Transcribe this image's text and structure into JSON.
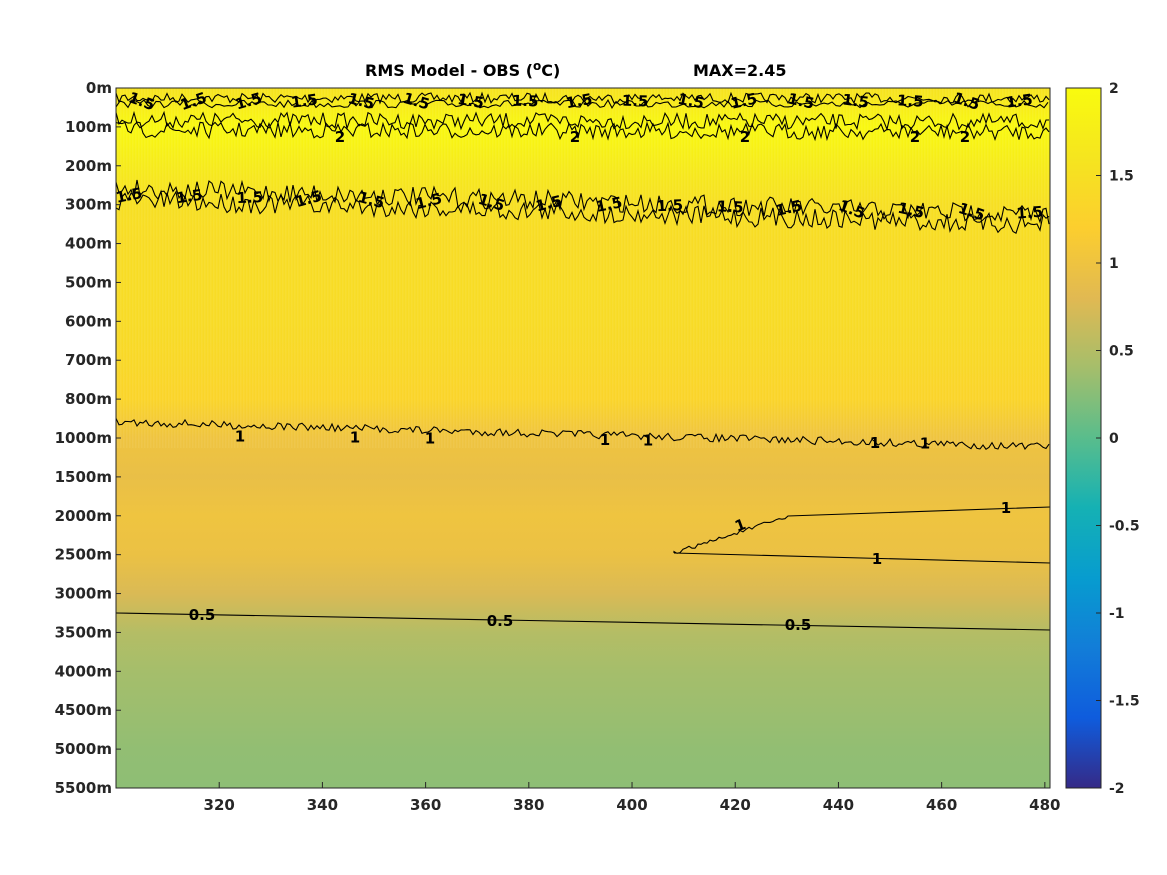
{
  "chart_data": {
    "type": "heatmap",
    "title": "RMS Model - OBS (",
    "title_unit": "o",
    "title_unit_suffix": "C)",
    "max_label": "MAX=2.45",
    "x_ticks": [
      "320",
      "340",
      "360",
      "380",
      "400",
      "420",
      "440",
      "460",
      "480"
    ],
    "x_tick_values": [
      320,
      340,
      360,
      380,
      400,
      420,
      440,
      460,
      480
    ],
    "xlim": [
      300,
      481
    ],
    "y_ticks": [
      "0m",
      "100m",
      "200m",
      "300m",
      "400m",
      "500m",
      "600m",
      "700m",
      "800m",
      "1000m",
      "1500m",
      "2000m",
      "2500m",
      "3000m",
      "3500m",
      "4000m",
      "4500m",
      "5000m",
      "5500m"
    ],
    "colorbar": {
      "min": -2,
      "max": 2,
      "ticks": [
        "2",
        "1.5",
        "1",
        "0.5",
        "0",
        "-0.5",
        "-1",
        "-1.5",
        "-2"
      ],
      "tick_values": [
        2,
        1.5,
        1,
        0.5,
        0,
        -0.5,
        -1,
        -1.5,
        -2
      ]
    },
    "depth_profile": [
      {
        "depth": "0m",
        "value": 1.55
      },
      {
        "depth": "100m",
        "value": 1.95
      },
      {
        "depth": "200m",
        "value": 1.7
      },
      {
        "depth": "300m",
        "value": 1.5
      },
      {
        "depth": "400m",
        "value": 1.45
      },
      {
        "depth": "500m",
        "value": 1.45
      },
      {
        "depth": "600m",
        "value": 1.42
      },
      {
        "depth": "700m",
        "value": 1.38
      },
      {
        "depth": "800m",
        "value": 1.3
      },
      {
        "depth": "1000m",
        "value": 1.0
      },
      {
        "depth": "1500m",
        "value": 0.92
      },
      {
        "depth": "2000m",
        "value": 1.0
      },
      {
        "depth": "2500m",
        "value": 0.95
      },
      {
        "depth": "3000m",
        "value": 0.75
      },
      {
        "depth": "3500m",
        "value": 0.5
      },
      {
        "depth": "4000m",
        "value": 0.4
      },
      {
        "depth": "4500m",
        "value": 0.35
      },
      {
        "depth": "5000m",
        "value": 0.3
      },
      {
        "depth": "5500m",
        "value": 0.28
      }
    ],
    "contours": [
      {
        "level": "1.5",
        "label": "1.5"
      },
      {
        "level": "2",
        "label": "2"
      },
      {
        "level": "1",
        "label": "1"
      },
      {
        "level": "0.5",
        "label": "0.5"
      }
    ]
  }
}
